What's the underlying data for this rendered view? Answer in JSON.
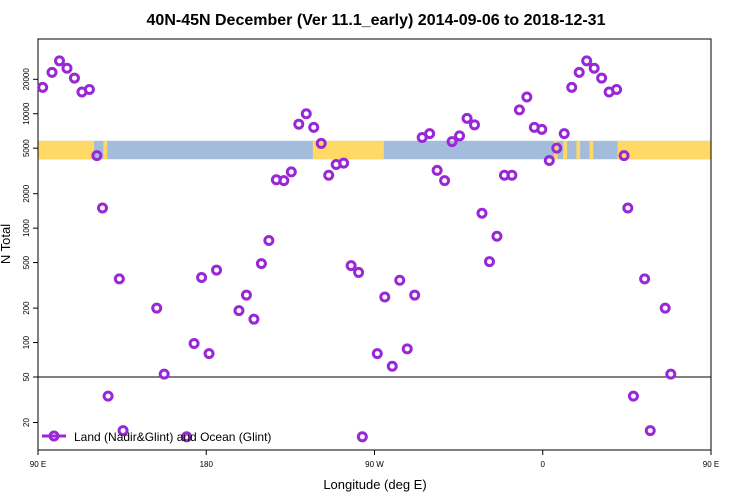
{
  "chart_data": {
    "type": "scatter",
    "title": "40N-45N December (Ver 11.1_early)   2014-09-06 to 2018-12-31",
    "xlabel": "Longitude (deg E)",
    "ylabel": "N Total",
    "x_range": [
      90,
      450
    ],
    "y_scale": "log",
    "y_range": [
      11.5,
      45000
    ],
    "grid": false,
    "legend_position": "bottom-left",
    "x_ticks": [
      {
        "value": 90,
        "label": "90 E"
      },
      {
        "value": 180,
        "label": "180"
      },
      {
        "value": 270,
        "label": "90 W"
      },
      {
        "value": 360,
        "label": "0"
      },
      {
        "value": 450,
        "label": "90 E"
      },
      {
        "value": 540,
        "label": "180"
      }
    ],
    "y_ticks": [
      {
        "value": 20,
        "label": "20"
      },
      {
        "value": 50,
        "label": "50"
      },
      {
        "value": 100,
        "label": "100"
      },
      {
        "value": 200,
        "label": "200"
      },
      {
        "value": 500,
        "label": "500"
      },
      {
        "value": 1000,
        "label": "1000"
      },
      {
        "value": 2000,
        "label": "2000"
      },
      {
        "value": 5000,
        "label": "5000"
      },
      {
        "value": 10000,
        "label": "10000"
      },
      {
        "value": 20000,
        "label": "20000"
      }
    ],
    "reference_line": 50,
    "land_ocean_band": {
      "y_range": [
        4000,
        5800
      ],
      "land_color": "#ffd966",
      "ocean_color": "#a4bcdc",
      "land_segments": [
        [
          90,
          120
        ],
        [
          125,
          127
        ],
        [
          237,
          275
        ],
        [
          366,
          368
        ],
        [
          371,
          373
        ],
        [
          378,
          380
        ],
        [
          385,
          387
        ],
        [
          400,
          465
        ],
        [
          467,
          470
        ]
      ]
    },
    "series": [
      {
        "name": "Land (Nadir&Glint) and Ocean (Glint)",
        "color": "#9a27d6",
        "points": [
          {
            "x": 92.5,
            "y": 17000
          },
          {
            "x": 97.5,
            "y": 23000
          },
          {
            "x": 101.5,
            "y": 29000
          },
          {
            "x": 105.5,
            "y": 25000
          },
          {
            "x": 109.5,
            "y": 20500
          },
          {
            "x": 113.5,
            "y": 15500
          },
          {
            "x": 117.5,
            "y": 16300
          },
          {
            "x": 121.5,
            "y": 4300
          },
          {
            "x": 124.5,
            "y": 1500
          },
          {
            "x": 127.5,
            "y": 34
          },
          {
            "x": 133.5,
            "y": 360
          },
          {
            "x": 135.5,
            "y": 17
          },
          {
            "x": 153.5,
            "y": 200
          },
          {
            "x": 157.5,
            "y": 53
          },
          {
            "x": 169.5,
            "y": 15
          },
          {
            "x": 173.5,
            "y": 98
          },
          {
            "x": 177.5,
            "y": 370
          },
          {
            "x": 181.5,
            "y": 80
          },
          {
            "x": 185.5,
            "y": 430
          },
          {
            "x": 197.5,
            "y": 190
          },
          {
            "x": 201.5,
            "y": 260
          },
          {
            "x": 205.5,
            "y": 160
          },
          {
            "x": 209.5,
            "y": 490
          },
          {
            "x": 213.5,
            "y": 780
          },
          {
            "x": 217.5,
            "y": 2650
          },
          {
            "x": 221.5,
            "y": 2600
          },
          {
            "x": 225.5,
            "y": 3100
          },
          {
            "x": 229.5,
            "y": 8100
          },
          {
            "x": 233.5,
            "y": 10000
          },
          {
            "x": 237.5,
            "y": 7600
          },
          {
            "x": 241.5,
            "y": 5500
          },
          {
            "x": 245.5,
            "y": 2900
          },
          {
            "x": 249.5,
            "y": 3600
          },
          {
            "x": 253.5,
            "y": 3700
          },
          {
            "x": 257.5,
            "y": 470
          },
          {
            "x": 261.5,
            "y": 410
          },
          {
            "x": 263.5,
            "y": 15
          },
          {
            "x": 271.5,
            "y": 80
          },
          {
            "x": 275.5,
            "y": 250
          },
          {
            "x": 279.5,
            "y": 62
          },
          {
            "x": 283.5,
            "y": 350
          },
          {
            "x": 287.5,
            "y": 88
          },
          {
            "x": 291.5,
            "y": 260
          },
          {
            "x": 295.5,
            "y": 6200
          },
          {
            "x": 299.5,
            "y": 6700
          },
          {
            "x": 303.5,
            "y": 3200
          },
          {
            "x": 307.5,
            "y": 2600
          },
          {
            "x": 311.5,
            "y": 5700
          },
          {
            "x": 315.5,
            "y": 6400
          },
          {
            "x": 319.5,
            "y": 9100
          },
          {
            "x": 323.5,
            "y": 8000
          },
          {
            "x": 327.5,
            "y": 1350
          },
          {
            "x": 331.5,
            "y": 510
          },
          {
            "x": 335.5,
            "y": 850
          },
          {
            "x": 339.5,
            "y": 2900
          },
          {
            "x": 343.5,
            "y": 2900
          },
          {
            "x": 347.5,
            "y": 10800
          },
          {
            "x": 351.5,
            "y": 14000
          },
          {
            "x": 355.5,
            "y": 7600
          },
          {
            "x": 359.5,
            "y": 7300
          },
          {
            "x": 363.5,
            "y": 3900
          },
          {
            "x": 367.5,
            "y": 5000
          },
          {
            "x": 371.5,
            "y": 6700
          },
          {
            "x": 375.5,
            "y": 17000
          },
          {
            "x": 379.5,
            "y": 23000
          },
          {
            "x": 383.5,
            "y": 29000
          },
          {
            "x": 387.5,
            "y": 25000
          },
          {
            "x": 391.5,
            "y": 20500
          },
          {
            "x": 395.5,
            "y": 15500
          },
          {
            "x": 399.5,
            "y": 16300
          },
          {
            "x": 403.5,
            "y": 4300
          },
          {
            "x": 405.5,
            "y": 1500
          },
          {
            "x": 408.5,
            "y": 34
          },
          {
            "x": 414.5,
            "y": 360
          },
          {
            "x": 417.5,
            "y": 17
          },
          {
            "x": 425.5,
            "y": 200
          },
          {
            "x": 428.5,
            "y": 53
          }
        ]
      }
    ]
  }
}
